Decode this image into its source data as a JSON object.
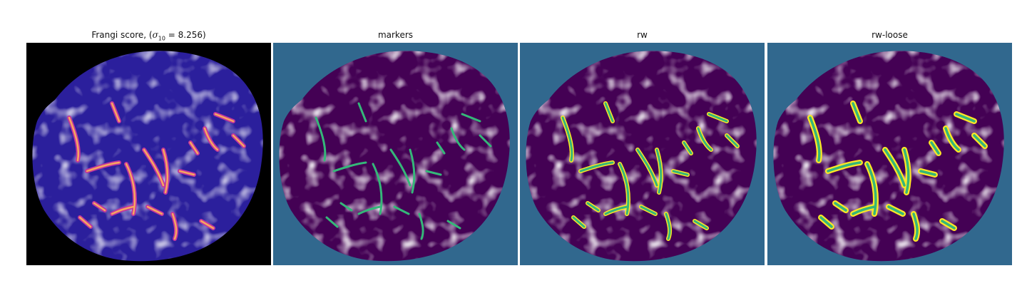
{
  "figure": {
    "panels": [
      {
        "title": "Frangi score, ",
        "title_math": {
          "open": "(",
          "sigma": "σ",
          "sub": "10",
          "eq": " = 8.256",
          "close": ")"
        },
        "colormap": "magma"
      },
      {
        "title": "markers",
        "colormap": "viridis"
      },
      {
        "title": "rw",
        "colormap": "viridis"
      },
      {
        "title": "rw-loose",
        "colormap": "viridis"
      }
    ]
  },
  "colors": {
    "black": "#000000",
    "purple": "#440154",
    "teal": "#31688e",
    "green": "#35b779",
    "yellow": "#fde725",
    "indigo": "#2b1f9c",
    "magenta": "#c0369e",
    "orange": "#f7a65f"
  }
}
